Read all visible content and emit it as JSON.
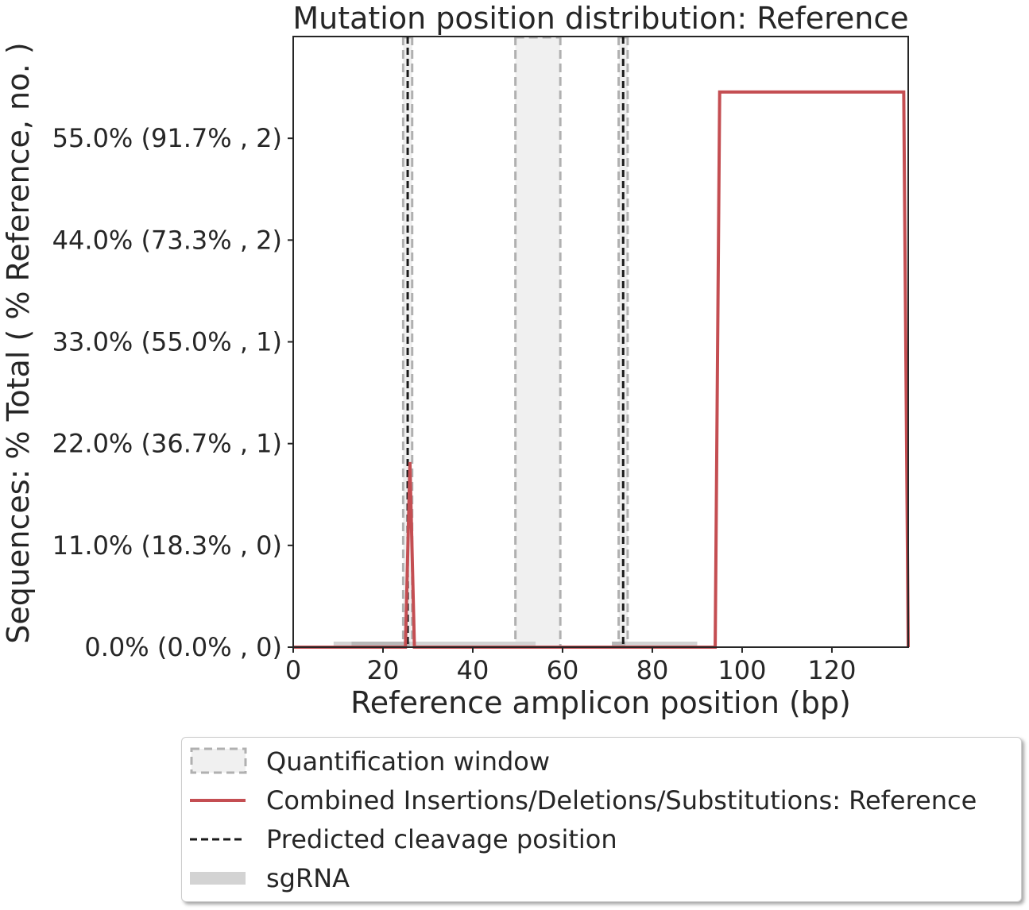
{
  "chart_data": {
    "type": "line",
    "title": "Mutation position distribution: Reference",
    "xlabel": "Reference amplicon position (bp)",
    "ylabel": "Sequences: % Total ( % Reference, no. )",
    "xlim": [
      0,
      137
    ],
    "ylim": [
      0,
      66
    ],
    "x_ticks": [
      0,
      20,
      40,
      60,
      80,
      100,
      120
    ],
    "y_ticks": [
      {
        "value": 0,
        "label": "0.0% (0.0% , 0)"
      },
      {
        "value": 11,
        "label": "11.0% (18.3% , 0)"
      },
      {
        "value": 22,
        "label": "22.0% (36.7% , 1)"
      },
      {
        "value": 33,
        "label": "33.0% (55.0% , 1)"
      },
      {
        "value": 44,
        "label": "44.0% (73.3% , 2)"
      },
      {
        "value": 55,
        "label": "55.0% (91.7% , 2)"
      }
    ],
    "series": [
      {
        "name": "Combined Insertions/Deletions/Substitutions: Reference",
        "color": "#c44e52",
        "x": [
          0,
          25,
          26,
          27,
          94,
          95,
          136,
          137
        ],
        "y": [
          0,
          0,
          20,
          0,
          0,
          60,
          60,
          0
        ]
      }
    ],
    "quantification_windows": [
      [
        24.5,
        26.5
      ],
      [
        49.5,
        59.5
      ],
      [
        72.5,
        74.5
      ]
    ],
    "cleavage_positions": [
      25.5,
      73.5
    ],
    "sgrna": [
      {
        "start": 9,
        "end": 54,
        "darker_start": 13,
        "darker_end": 26
      },
      {
        "start": 71,
        "end": 90,
        "darker_start": 71,
        "darker_end": 74
      }
    ],
    "legend": {
      "placement": "below",
      "entries": [
        {
          "label": "Quantification window",
          "kind": "window"
        },
        {
          "label": "Combined Insertions/Deletions/Substitutions: Reference",
          "kind": "line"
        },
        {
          "label": "Predicted cleavage position",
          "kind": "dashed"
        },
        {
          "label": "sgRNA",
          "kind": "bar"
        }
      ]
    },
    "colors": {
      "line": "#c44e52",
      "window_fill": "#f0f0f0",
      "window_edge": "#b0b0b0",
      "cleavage": "#1a1a1a",
      "sgrna": "#d3d3d3"
    }
  }
}
